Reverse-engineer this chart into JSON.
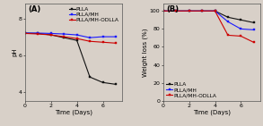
{
  "time_days": [
    0,
    1,
    2,
    3,
    4,
    5,
    6,
    7
  ],
  "ph_plla": [
    7.2,
    7.18,
    7.1,
    6.95,
    6.8,
    4.8,
    4.5,
    4.4
  ],
  "ph_plla_mh": [
    7.2,
    7.2,
    7.18,
    7.15,
    7.1,
    6.95,
    7.0,
    7.0
  ],
  "ph_plla_mh_odlla": [
    7.18,
    7.15,
    7.1,
    7.0,
    6.9,
    6.75,
    6.7,
    6.65
  ],
  "wl_plla": [
    100,
    100,
    100,
    100,
    100,
    93,
    90,
    87
  ],
  "wl_plla_mh": [
    100,
    100,
    100,
    100,
    100,
    88,
    80,
    79
  ],
  "wl_plla_mh_odlla": [
    100,
    100,
    100,
    100,
    100,
    73,
    72,
    65
  ],
  "color_plla": "#111111",
  "color_mh": "#1a1aff",
  "color_odlla": "#cc0000",
  "label_plla": "PLLA",
  "label_mh": "PLLA/MH",
  "label_odlla": "PLLA/MH-ODLLA",
  "xlabel": "Time (Days)",
  "ylabel_a": "pH",
  "ylabel_b": "Weight loss (%)",
  "panel_a": "(A)",
  "panel_b": "(B)",
  "xlim": [
    0,
    7.5
  ],
  "ylim_ph": [
    3.5,
    8.8
  ],
  "ylim_wl": [
    0,
    108
  ],
  "yticks_ph": [
    4,
    6,
    8
  ],
  "yticks_wl": [
    0,
    20,
    40,
    60,
    80,
    100
  ],
  "xticks": [
    0,
    2,
    4,
    6
  ],
  "legend_fontsize": 4.2,
  "axis_fontsize": 5.0,
  "tick_fontsize": 4.5,
  "marker": "s",
  "markersize": 2.0,
  "linewidth": 0.8,
  "bg_color": "#d8d0c8"
}
